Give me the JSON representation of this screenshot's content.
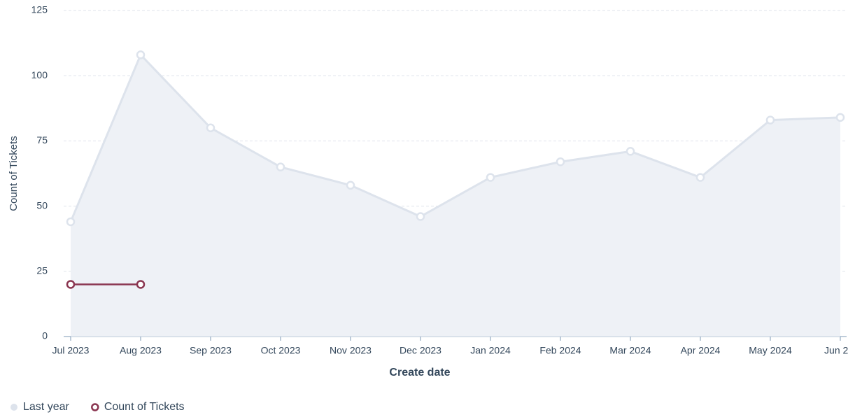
{
  "chart_data": {
    "type": "line",
    "x_label": "Create date",
    "y_label": "Count of Tickets",
    "categories": [
      "Jul 2023",
      "Aug 2023",
      "Sep 2023",
      "Oct 2023",
      "Nov 2023",
      "Dec 2023",
      "Jan 2024",
      "Feb 2024",
      "Mar 2024",
      "Apr 2024",
      "May 2024",
      "Jun 2..."
    ],
    "series": [
      {
        "name": "Last year",
        "color": "#dde3ec",
        "fill": "#eef1f6",
        "area": true,
        "values": [
          44,
          108,
          80,
          65,
          58,
          46,
          61,
          67,
          71,
          61,
          83,
          84
        ]
      },
      {
        "name": "Count of Tickets",
        "color": "#8a3550",
        "area": false,
        "values": [
          20,
          20,
          null,
          null,
          null,
          null,
          null,
          null,
          null,
          null,
          null,
          null
        ]
      }
    ],
    "ylim": [
      0,
      125
    ],
    "yticks": [
      0,
      25,
      50,
      75,
      100,
      125
    ],
    "grid": true,
    "legend": "bottom-left"
  }
}
